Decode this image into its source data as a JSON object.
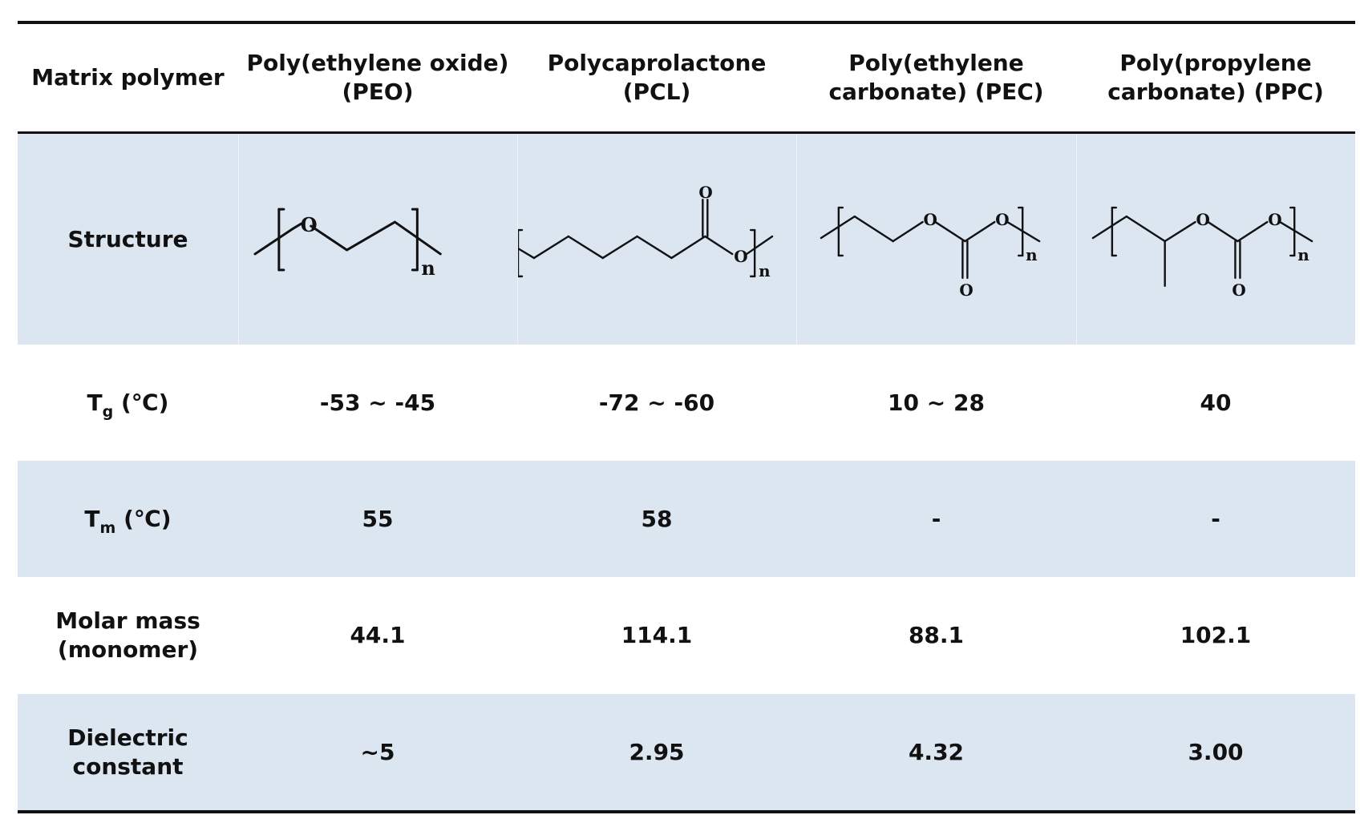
{
  "header": {
    "col0": "Matrix polymer",
    "col1_line1": "Poly(ethylene oxide)",
    "col1_line2": "(PEO)",
    "col2_line1": "Polycaprolactone",
    "col2_line2": "(PCL)",
    "col3_line1": "Poly(ethylene",
    "col3_line2": "carbonate) (PEC)",
    "col4_line1": "Poly(propylene",
    "col4_line2": "carbonate) (PPC)"
  },
  "structure": {
    "label": "Structure",
    "atom_o": "O",
    "subscript_n": "n"
  },
  "tg": {
    "label_main": "T",
    "label_sub": "g",
    "label_unit": " (℃)",
    "values": [
      "-53 ~ -45",
      "-72 ~ -60",
      "10 ~ 28",
      "40"
    ]
  },
  "tm": {
    "label_main": "T",
    "label_sub": "m",
    "label_unit": " (℃)",
    "values": [
      "55",
      "58",
      "-",
      "-"
    ]
  },
  "molar": {
    "label_line1": "Molar mass",
    "label_line2": "(monomer)",
    "values": [
      "44.1",
      "114.1",
      "88.1",
      "102.1"
    ]
  },
  "dielectric": {
    "label_line1": "Dielectric",
    "label_line2": "constant",
    "values": [
      "~5",
      "2.95",
      "4.32",
      "3.00"
    ]
  }
}
